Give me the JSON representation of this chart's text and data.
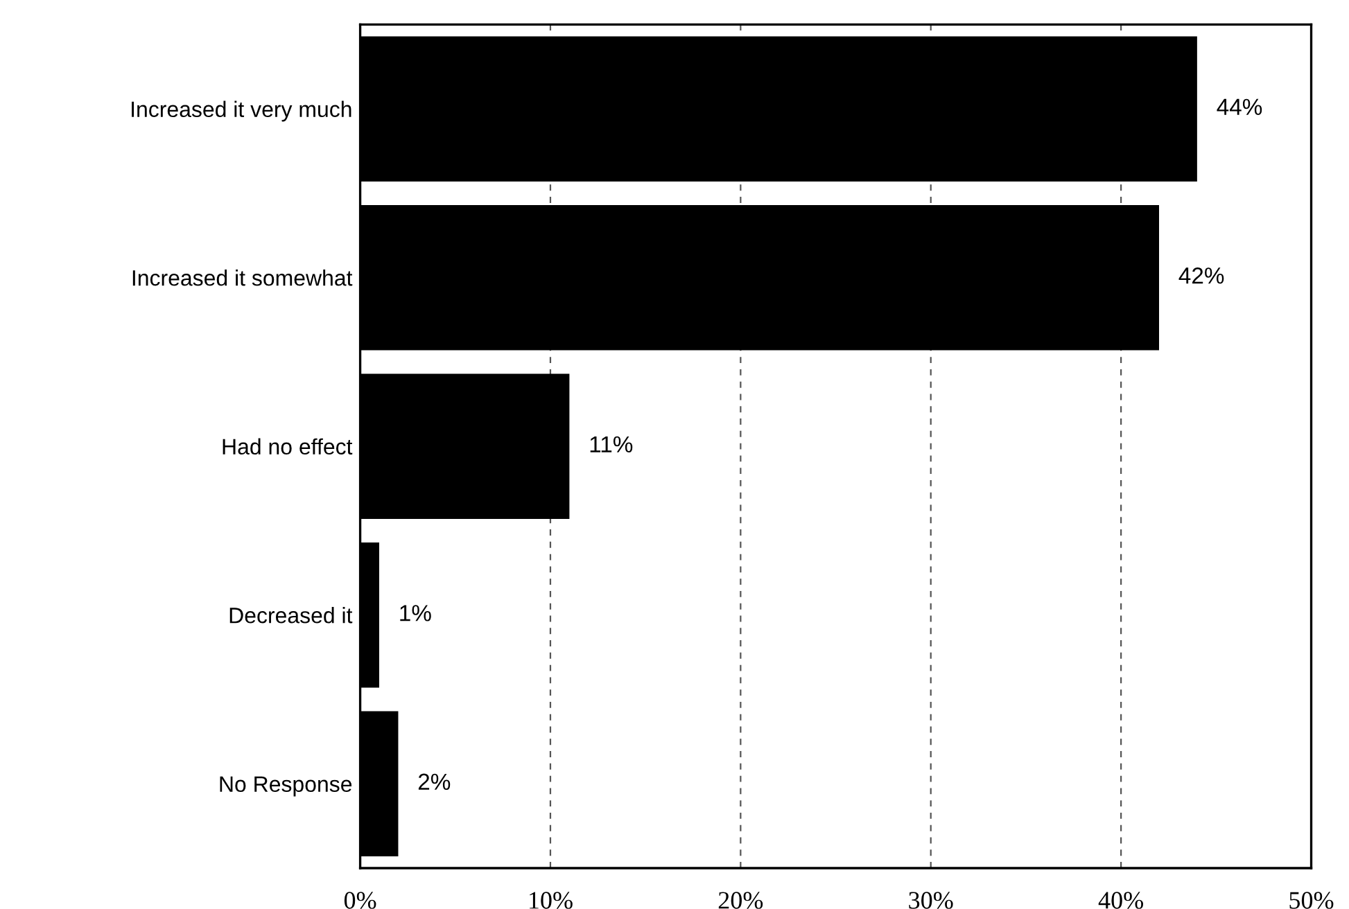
{
  "chart_data": {
    "type": "bar",
    "orientation": "horizontal",
    "categories": [
      "Increased it very much",
      "Increased it somewhat",
      "Had no effect",
      "Decreased it",
      "No Response"
    ],
    "values": [
      44,
      42,
      11,
      1,
      2
    ],
    "color": "#000000",
    "value_labels": [
      "44%",
      "42%",
      "11%",
      "1%",
      "2%"
    ],
    "xlim": [
      0,
      50
    ],
    "xticks": [
      {
        "value": 0,
        "label": "0%"
      },
      {
        "value": 10,
        "label": "10%"
      },
      {
        "value": 20,
        "label": "20%"
      },
      {
        "value": 30,
        "label": "30%"
      },
      {
        "value": 40,
        "label": "40%"
      },
      {
        "value": 50,
        "label": "50%"
      }
    ],
    "grid": "x",
    "legend": false
  }
}
